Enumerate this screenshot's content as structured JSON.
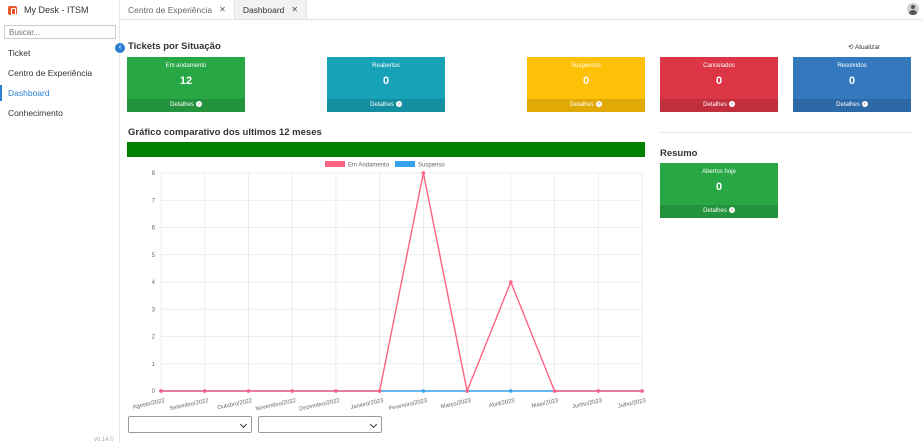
{
  "app": {
    "title": "My Desk - ITSM",
    "version": "v0.14.0"
  },
  "sidebar": {
    "search_placeholder": "Buscar...",
    "items": [
      {
        "label": "Ticket"
      },
      {
        "label": "Centro de Experiência"
      },
      {
        "label": "Dashboard"
      },
      {
        "label": "Conhecimento"
      }
    ]
  },
  "tabs": [
    {
      "label": "Centro de Experiência"
    },
    {
      "label": "Dashboard"
    }
  ],
  "tickets": {
    "title": "Tickets por Situação",
    "refresh_label": "Atualizar",
    "cards": [
      {
        "label": "Em andamento",
        "value": "12",
        "footer": "Detalhes",
        "color": "#28a745"
      },
      {
        "label": "Reabertos",
        "value": "0",
        "footer": "Detalhes",
        "color": "#17a2b8"
      },
      {
        "label": "Suspensos",
        "value": "0",
        "footer": "Detalhes",
        "color": "#ffc107"
      },
      {
        "label": "Cancelados",
        "value": "0",
        "footer": "Detalhes",
        "color": "#dc3545"
      },
      {
        "label": "Resolvidos",
        "value": "0",
        "footer": "Detalhes",
        "color": "#3478bd"
      }
    ]
  },
  "comparison": {
    "title": "Gráfico comparativo dos ultimos 12 meses",
    "bar_color": "#008000"
  },
  "summary": {
    "title": "Resumo",
    "card": {
      "label": "Abertos hoje",
      "value": "0",
      "footer": "Detalhes",
      "color": "#28a745"
    }
  },
  "chart_data": {
    "type": "line",
    "categories": [
      "Agosto/2022",
      "Setembro/2022",
      "Outubro/2022",
      "Novembro/2022",
      "Dezembro/2022",
      "Janeiro/2023",
      "Fevereiro/2023",
      "Março/2023",
      "Abril/2023",
      "Maio/2023",
      "Junho/2023",
      "Julho/2023"
    ],
    "series": [
      {
        "name": "Em Andamento",
        "color": "#ff6384",
        "values": [
          0,
          0,
          0,
          0,
          0,
          0,
          8,
          0,
          4,
          0,
          0,
          0
        ]
      },
      {
        "name": "Suspenso",
        "color": "#36a2eb",
        "values": [
          0,
          0,
          0,
          0,
          0,
          0,
          0,
          0,
          0,
          0,
          0,
          0
        ]
      }
    ],
    "ylim": [
      0,
      8
    ],
    "yticks": [
      "0",
      "1",
      "2",
      "3",
      "4",
      "5",
      "6",
      "7",
      "8"
    ]
  }
}
